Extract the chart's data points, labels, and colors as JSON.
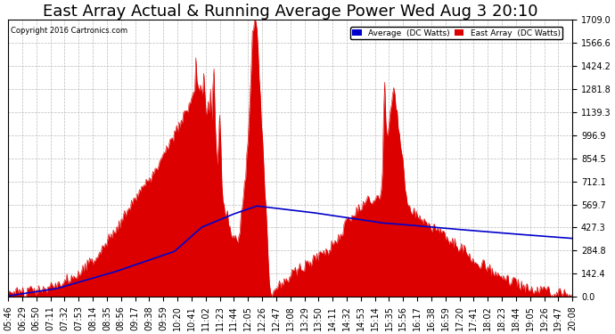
{
  "title": "East Array Actual & Running Average Power Wed Aug 3 20:10",
  "copyright": "Copyright 2016 Cartronics.com",
  "legend_labels": [
    "Average  (DC Watts)",
    "East Array  (DC Watts)"
  ],
  "legend_colors": [
    "#0000ff",
    "#cc0000"
  ],
  "ymax": 1709.0,
  "yticks": [
    0.0,
    142.4,
    284.8,
    427.3,
    569.7,
    712.1,
    854.5,
    996.9,
    1139.3,
    1281.8,
    1424.2,
    1566.6,
    1709.0
  ],
  "background_color": "#ffffff",
  "plot_bg_color": "#ffffff",
  "grid_color": "#bbbbbb",
  "title_fontsize": 13,
  "axis_fontsize": 7,
  "red_color": "#dd0000",
  "blue_color": "#0000cc",
  "xtick_labels": [
    "05:46",
    "06:29",
    "06:50",
    "07:11",
    "07:32",
    "07:53",
    "08:14",
    "08:35",
    "08:56",
    "09:17",
    "09:38",
    "09:59",
    "10:20",
    "10:41",
    "11:02",
    "11:23",
    "11:44",
    "12:05",
    "12:26",
    "12:47",
    "13:08",
    "13:29",
    "13:50",
    "14:11",
    "14:32",
    "14:53",
    "15:14",
    "15:35",
    "15:56",
    "16:17",
    "16:38",
    "16:59",
    "17:20",
    "17:41",
    "18:02",
    "18:23",
    "18:44",
    "19:05",
    "19:26",
    "19:47",
    "20:08"
  ]
}
